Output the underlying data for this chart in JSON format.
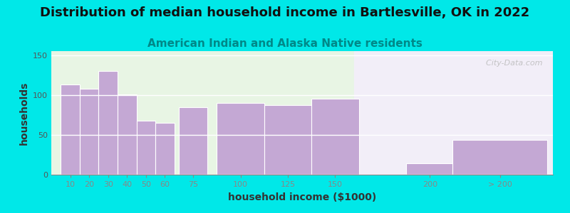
{
  "title": "Distribution of median household income in Bartlesville, OK in 2022",
  "subtitle": "American Indian and Alaska Native residents",
  "xlabel": "household income ($1000)",
  "ylabel": "households",
  "bar_labels": [
    "10",
    "20",
    "30",
    "40",
    "50",
    "60",
    "75",
    "100",
    "125",
    "150",
    "200",
    "> 200"
  ],
  "bar_left_edges": [
    5,
    15,
    25,
    35,
    45,
    55,
    65,
    80,
    112,
    137,
    162,
    212
  ],
  "bar_widths": [
    10,
    10,
    10,
    10,
    10,
    10,
    15,
    25,
    25,
    25,
    25,
    50
  ],
  "bar_centers": [
    10,
    20,
    30,
    40,
    50,
    60,
    75,
    100,
    125,
    150,
    200,
    237
  ],
  "bar_values": [
    113,
    108,
    130,
    101,
    68,
    65,
    85,
    90,
    87,
    95,
    14,
    44
  ],
  "bar_color": "#c4a8d4",
  "bar_edge_color": "#ffffff",
  "background_outer": "#00e8e8",
  "background_left": "#e8f5e4",
  "background_right": "#f2eef8",
  "watermark": "  City-Data.com",
  "ylim": [
    0,
    155
  ],
  "yticks": [
    0,
    50,
    100,
    150
  ],
  "xmin": 0,
  "xmax": 265,
  "gap_start": 160,
  "gap_end": 185,
  "title_fontsize": 13,
  "subtitle_fontsize": 11,
  "axis_label_fontsize": 10
}
